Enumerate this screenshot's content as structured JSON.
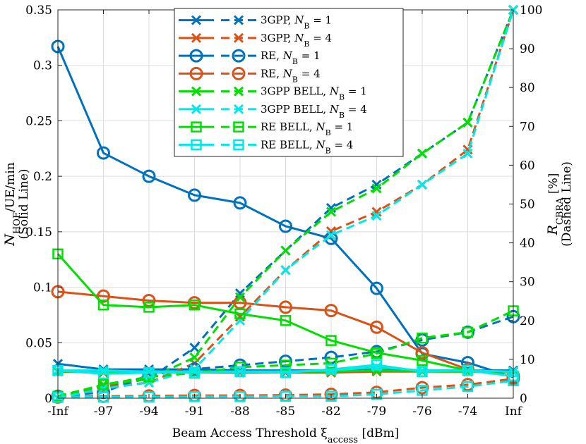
{
  "chart_data": {
    "type": "line",
    "title": "",
    "categories": [
      "-Inf",
      "-97",
      "-94",
      "-91",
      "-88",
      "-85",
      "-82",
      "-79",
      "-76",
      "-74",
      "Inf"
    ],
    "xlabel": "Beam Access Threshold ξ",
    "xlabel_sub": "access",
    "xlabel_unit": "[dBm]",
    "ylabel_left": {
      "symbol": "N",
      "sub": "HOF",
      "rest": "/UE/min",
      "note": "(Solid Line)"
    },
    "ylabel_right": {
      "symbol": "R",
      "sub": "CBRA",
      "rest": "[%]",
      "note": "(Dashed Line)"
    },
    "y_left": {
      "lim": [
        0,
        0.35
      ],
      "ticks": [
        0,
        0.05,
        0.1,
        0.15,
        0.2,
        0.25,
        0.3,
        0.35
      ],
      "tick_labels": [
        "0",
        "0.05",
        "0.1",
        "0.15",
        "0.2",
        "0.25",
        "0.3",
        "0.35"
      ]
    },
    "y_right": {
      "lim": [
        0,
        100
      ],
      "ticks": [
        0,
        10,
        20,
        30,
        40,
        50,
        60,
        70,
        80,
        90,
        100
      ],
      "tick_labels": [
        "0",
        "10",
        "20",
        "30",
        "40",
        "50",
        "60",
        "70",
        "80",
        "90",
        "100"
      ]
    },
    "grid": true,
    "legend_position": "top-center",
    "series": [
      {
        "key": "3gpp-nb1",
        "name": "3GPP, ",
        "nb": "1",
        "color": "#0072BD",
        "marker": "x",
        "hof": [
          0.031,
          0.026,
          0.026,
          0.026,
          0.025,
          0.025,
          0.025,
          0.026,
          0.025,
          0.025,
          0.025
        ],
        "cbra": [
          0,
          3,
          5,
          13,
          27,
          38,
          49,
          55,
          63,
          71,
          100
        ]
      },
      {
        "key": "3gpp-nb4",
        "name": "3GPP, ",
        "nb": "4",
        "color": "#D95319",
        "marker": "x",
        "hof": [
          0.024,
          0.023,
          0.023,
          0.023,
          0.023,
          0.023,
          0.023,
          0.024,
          0.024,
          0.024,
          0.024
        ],
        "cbra": [
          0,
          3,
          4,
          9,
          21,
          33,
          43,
          48,
          55,
          64,
          100
        ]
      },
      {
        "key": "re-nb1",
        "name": "RE, ",
        "nb": "1",
        "color": "#0072BD",
        "marker": "o",
        "hof": [
          0.317,
          0.221,
          0.2,
          0.183,
          0.176,
          0.155,
          0.144,
          0.099,
          0.04,
          0.032,
          0.019
        ],
        "cbra": [
          0.5,
          1.5,
          6,
          7.5,
          8.5,
          9.5,
          10.5,
          12,
          15,
          17,
          21
        ]
      },
      {
        "key": "re-nb4",
        "name": "RE, ",
        "nb": "4",
        "color": "#D95319",
        "marker": "o",
        "hof": [
          0.096,
          0.092,
          0.088,
          0.086,
          0.086,
          0.082,
          0.079,
          0.064,
          0.041,
          0.026,
          0.02
        ],
        "cbra": [
          0.3,
          0.5,
          0.6,
          0.7,
          0.7,
          0.8,
          1.0,
          1.5,
          2.7,
          3.5,
          5
        ]
      },
      {
        "key": "bell-3gpp-nb1",
        "name": "3GPP BELL, ",
        "nb": "1",
        "color": "#00E000",
        "marker": "x",
        "hof": [
          0.024,
          0.024,
          0.024,
          0.024,
          0.024,
          0.024,
          0.024,
          0.025,
          0.024,
          0.024,
          0.024
        ],
        "cbra": [
          0,
          3.5,
          5,
          10.5,
          26,
          38,
          48,
          54,
          63,
          71,
          100
        ]
      },
      {
        "key": "bell-3gpp-nb4",
        "name": "3GPP BELL, ",
        "nb": "4",
        "color": "#00E8E8",
        "marker": "x",
        "hof": [
          0.025,
          0.025,
          0.024,
          0.024,
          0.024,
          0.024,
          0.025,
          0.028,
          0.025,
          0.025,
          0.024
        ],
        "cbra": [
          0,
          2.5,
          4,
          7.5,
          20,
          33,
          42,
          47,
          55,
          63,
          100
        ]
      },
      {
        "key": "bell-re-nb1",
        "name": "RE BELL, ",
        "nb": "1",
        "color": "#00E000",
        "marker": "s",
        "hof": [
          0.13,
          0.084,
          0.082,
          0.084,
          0.076,
          0.07,
          0.052,
          0.041,
          0.034,
          0.025,
          0.02
        ],
        "cbra": [
          0.5,
          3.5,
          5.5,
          6.5,
          8,
          8.5,
          9,
          11.5,
          15.5,
          17,
          22.5
        ]
      },
      {
        "key": "bell-re-nb4",
        "name": "RE BELL, ",
        "nb": "4",
        "color": "#00E8E8",
        "marker": "s",
        "hof": [
          0.025,
          0.022,
          0.023,
          0.023,
          0.024,
          0.023,
          0.026,
          0.03,
          0.024,
          0.025,
          0.02
        ],
        "cbra": [
          0.2,
          0.3,
          0.3,
          0.4,
          0.4,
          0.5,
          0.5,
          1.0,
          2.0,
          3.0,
          4.5
        ]
      }
    ]
  }
}
